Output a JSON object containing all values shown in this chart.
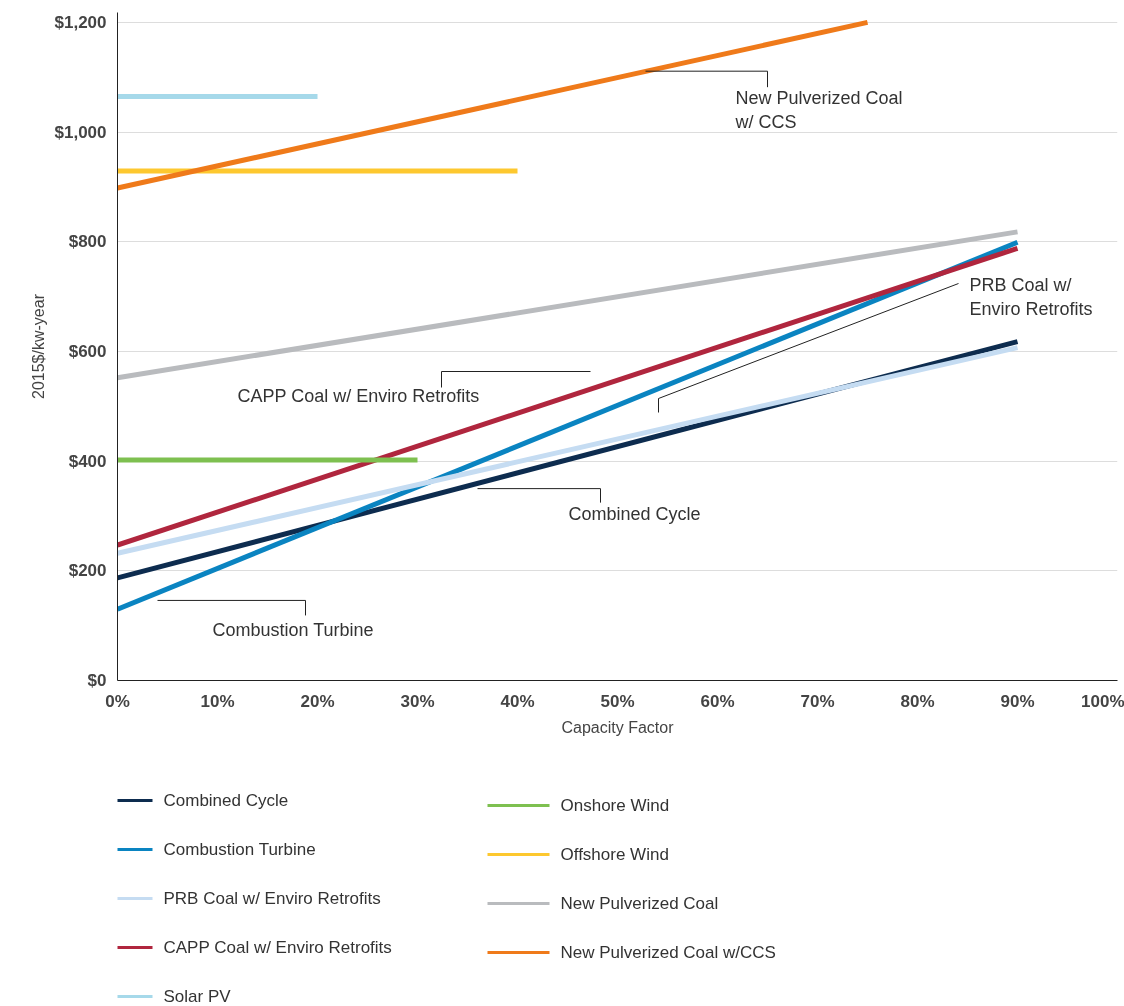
{
  "chart_data": {
    "type": "line",
    "xlabel": "Capacity Factor",
    "ylabel": "2015$/kw-year",
    "xlim": [
      0,
      100
    ],
    "ylim": [
      0,
      1218
    ],
    "xticks": [
      {
        "value": 0,
        "label": "0%"
      },
      {
        "value": 10,
        "label": "10%"
      },
      {
        "value": 20,
        "label": "20%"
      },
      {
        "value": 30,
        "label": "30%"
      },
      {
        "value": 40,
        "label": "40%"
      },
      {
        "value": 50,
        "label": "50%"
      },
      {
        "value": 60,
        "label": "60%"
      },
      {
        "value": 70,
        "label": "70%"
      },
      {
        "value": 80,
        "label": "80%"
      },
      {
        "value": 90,
        "label": "90%"
      },
      {
        "value": 100,
        "label": "100%"
      }
    ],
    "yticks": [
      {
        "value": 0,
        "label": "$0"
      },
      {
        "value": 200,
        "label": "$200"
      },
      {
        "value": 400,
        "label": "$400"
      },
      {
        "value": 600,
        "label": "$600"
      },
      {
        "value": 800,
        "label": "$800"
      },
      {
        "value": 1000,
        "label": "$1,000"
      },
      {
        "value": 1200,
        "label": "$1,200"
      }
    ],
    "grid": "y",
    "legend": "bottom",
    "marker": "none",
    "line_style": "solid",
    "series": [
      {
        "name": "Combined Cycle",
        "color": "#0d2c4f",
        "x": [
          0,
          90
        ],
        "values": [
          187,
          618
        ]
      },
      {
        "name": "Combustion Turbine",
        "color": "#0a84c1",
        "x": [
          0,
          90
        ],
        "values": [
          130,
          799
        ]
      },
      {
        "name": "PRB Coal w/ Enviro Retrofits",
        "color": "#c5dcf2",
        "x": [
          0,
          90
        ],
        "values": [
          232,
          607
        ]
      },
      {
        "name": "CAPP Coal w/ Enviro Retrofits",
        "color": "#b0263e",
        "x": [
          0,
          90
        ],
        "values": [
          247,
          788
        ]
      },
      {
        "name": "Solar PV",
        "color": "#a6d9ea",
        "x": [
          0,
          20
        ],
        "values": [
          1065,
          1065
        ]
      },
      {
        "name": "Onshore Wind",
        "color": "#7ec050",
        "x": [
          0,
          30
        ],
        "values": [
          402,
          402
        ]
      },
      {
        "name": "Offshore Wind",
        "color": "#fdc82f",
        "x": [
          0,
          40
        ],
        "values": [
          929,
          929
        ]
      },
      {
        "name": "New Pulverized Coal",
        "color": "#b9bbbe",
        "x": [
          0,
          90
        ],
        "values": [
          552,
          818
        ]
      },
      {
        "name": "New Pulverized Coal w/CCS",
        "color": "#ef7a1a",
        "x": [
          0,
          75
        ],
        "values": [
          898,
          1200
        ]
      }
    ],
    "annotations": [
      {
        "text": "New Pulverized Coal\nw/ CCS",
        "x": 52.8,
        "y": 1111
      },
      "CAPP Coal w/ Enviro Retrofits",
      "PRB Coal w/\nEnviro Retrofits",
      {
        "text": "Combined Cycle",
        "x": 36.0,
        "y": 359
      },
      {
        "text": "Combustion Turbine",
        "x": 4.0,
        "y": 146
      }
    ]
  }
}
